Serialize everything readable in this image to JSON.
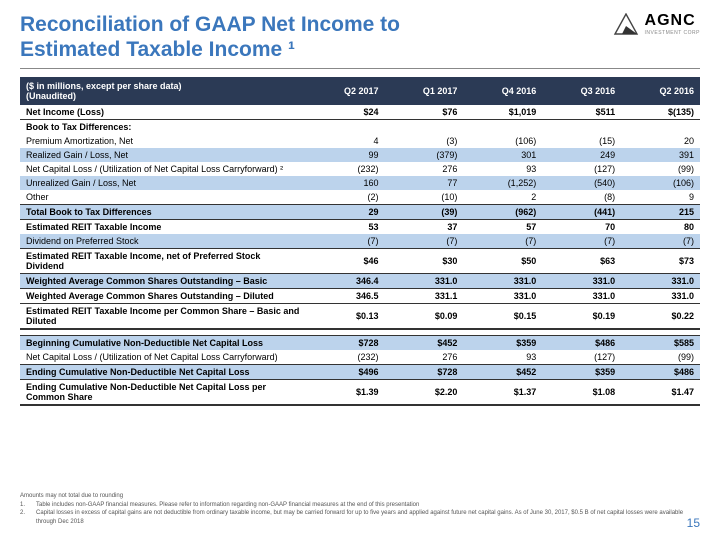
{
  "title_line1": "Reconciliation of GAAP Net Income to",
  "title_line2": "Estimated Taxable Income ¹",
  "logo": {
    "name": "AGNC",
    "sub": "INVESTMENT CORP"
  },
  "columns": [
    "($ in millions, except per share data)\n(Unaudited)",
    "Q2 2017",
    "Q1 2017",
    "Q4 2016",
    "Q3 2016",
    "Q2 2016"
  ],
  "rows": [
    {
      "c": [
        "Net Income (Loss)",
        "$24",
        "$76",
        "$1,019",
        "$511",
        "$(135)"
      ],
      "cls": "bold bb"
    },
    {
      "c": [
        "Book to Tax Differences:",
        "",
        "",
        "",
        "",
        ""
      ],
      "cls": "bold"
    },
    {
      "c": [
        "Premium Amortization, Net",
        "4",
        "(3)",
        "(106)",
        "(15)",
        "20"
      ]
    },
    {
      "c": [
        "Realized Gain / Loss, Net",
        "99",
        "(379)",
        "301",
        "249",
        "391"
      ],
      "cls": "alt"
    },
    {
      "c": [
        "Net Capital Loss / (Utilization of Net Capital Loss Carryforward) ²",
        "(232)",
        "276",
        "93",
        "(127)",
        "(99)"
      ]
    },
    {
      "c": [
        "Unrealized Gain / Loss, Net",
        "160",
        "77",
        "(1,252)",
        "(540)",
        "(106)"
      ],
      "cls": "alt"
    },
    {
      "c": [
        "Other",
        "(2)",
        "(10)",
        "2",
        "(8)",
        "9"
      ],
      "cls": "bb"
    },
    {
      "c": [
        "Total Book to Tax Differences",
        "29",
        "(39)",
        "(962)",
        "(441)",
        "215"
      ],
      "cls": "alt bold bb"
    },
    {
      "c": [
        "Estimated REIT Taxable Income",
        "53",
        "37",
        "57",
        "70",
        "80"
      ],
      "cls": "bold"
    },
    {
      "c": [
        "Dividend on Preferred Stock",
        "(7)",
        "(7)",
        "(7)",
        "(7)",
        "(7)"
      ],
      "cls": "alt bb"
    },
    {
      "c": [
        "Estimated REIT Taxable Income, net of Preferred Stock Dividend",
        "$46",
        "$30",
        "$50",
        "$63",
        "$73"
      ],
      "cls": "bold bb"
    },
    {
      "c": [
        "Weighted Average Common Shares Outstanding – Basic",
        "346.4",
        "331.0",
        "331.0",
        "331.0",
        "331.0"
      ],
      "cls": "alt bold bb"
    },
    {
      "c": [
        "Weighted Average Common Shares Outstanding – Diluted",
        "346.5",
        "331.1",
        "331.0",
        "331.0",
        "331.0"
      ],
      "cls": "bold bb"
    },
    {
      "c": [
        "Estimated REIT Taxable Income per Common Share – Basic and Diluted",
        "$0.13",
        "$0.09",
        "$0.15",
        "$0.19",
        "$0.22"
      ],
      "cls": "bold bb2"
    },
    {
      "c": [
        "",
        "",
        "",
        "",
        "",
        ""
      ],
      "cls": "spacer"
    },
    {
      "c": [
        "Beginning Cumulative Non-Deductible Net Capital Loss",
        "$728",
        "$452",
        "$359",
        "$486",
        "$585"
      ],
      "cls": "alt bold bt"
    },
    {
      "c": [
        "Net Capital Loss / (Utilization of Net Capital Loss Carryforward)",
        "(232)",
        "276",
        "93",
        "(127)",
        "(99)"
      ],
      "cls": "bb"
    },
    {
      "c": [
        "Ending Cumulative Non-Deductible Net Capital Loss",
        "$496",
        "$728",
        "$452",
        "$359",
        "$486"
      ],
      "cls": "alt bold bb"
    },
    {
      "c": [
        "Ending Cumulative Non-Deductible Net Capital Loss per Common Share",
        "$1.39",
        "$2.20",
        "$1.37",
        "$1.08",
        "$1.47"
      ],
      "cls": "bold bb2"
    }
  ],
  "footnotes": {
    "intro": "Amounts may not total due to rounding",
    "items": [
      {
        "n": "1.",
        "t": "Table includes non-GAAP financial measures. Please refer to information regarding non-GAAP financial measures at the end of this presentation"
      },
      {
        "n": "2.",
        "t": "Capital losses in excess of capital gains are not deductible from ordinary taxable income, but may be carried forward for up to five years and applied against future net capital gains. As of June 30, 2017, $0.5 B of net capital losses were available through Dec 2018"
      }
    ]
  },
  "page_number": "15",
  "colors": {
    "title": "#3b77bc",
    "header_bg": "#2b3a55",
    "alt_row": "#bcd3ec",
    "page_num": "#3b77bc"
  }
}
